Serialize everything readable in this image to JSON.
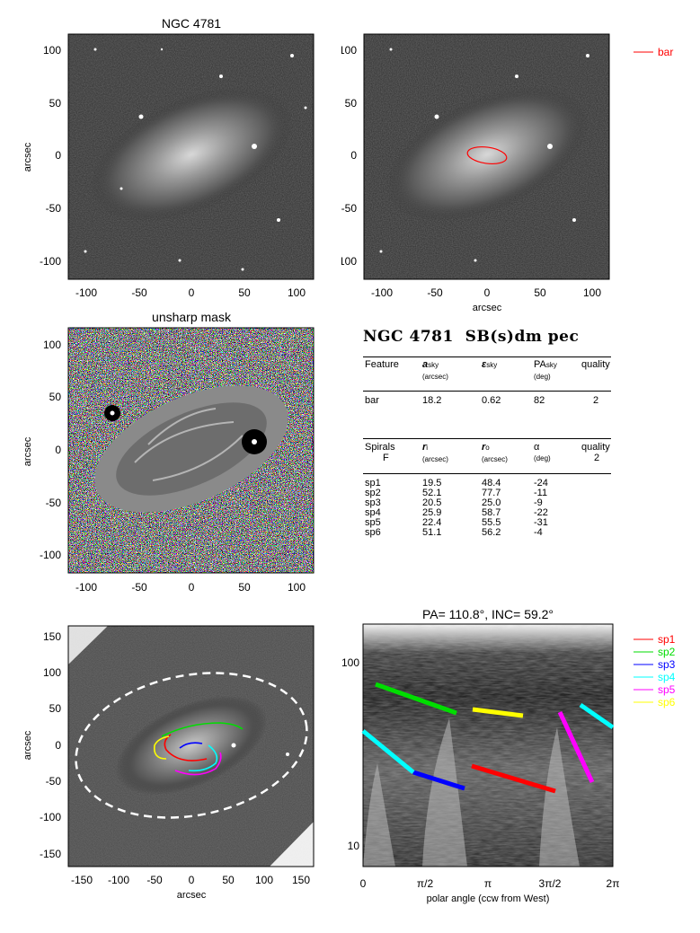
{
  "panel_titles": {
    "top_left": "NGC 4781",
    "middle_left": "unsharp mask",
    "bottom_right": "PA= 110.8°, INC=  59.2°"
  },
  "axis_labels": {
    "arcsec": "arcsec",
    "polar": "polar angle (ccw from West)"
  },
  "ticks": {
    "sky_small": [
      "-100",
      "-50",
      "0",
      "50",
      "100"
    ],
    "sky_large": [
      "-150",
      "-100",
      "-50",
      "0",
      "50",
      "100",
      "150"
    ],
    "log_r": [
      "100",
      "10"
    ],
    "polar": [
      "0",
      "π/2",
      "π",
      "3π/2",
      "2π"
    ]
  },
  "legend_bar": {
    "label": "bar",
    "color": "#ff0000"
  },
  "legend_spirals": [
    {
      "label": "sp1",
      "color": "#ff0000"
    },
    {
      "label": "sp2",
      "color": "#00dd00"
    },
    {
      "label": "sp3",
      "color": "#0000ff"
    },
    {
      "label": "sp4",
      "color": "#00ffff"
    },
    {
      "label": "sp5",
      "color": "#ff00ff"
    },
    {
      "label": "sp6",
      "color": "#ffff00"
    }
  ],
  "table": {
    "galaxy": "NGC 4781",
    "classification": "SB(s)dm pec",
    "bar_header": [
      "Feature",
      "a",
      "sky",
      "(arcsec)",
      "ε",
      "sky",
      "PA",
      "sky",
      "(deg)",
      "quality"
    ],
    "bar_row": [
      "bar",
      "18.2",
      "0.62",
      "82",
      "2"
    ],
    "spiral_header": [
      "Spirals",
      "F",
      "r",
      "i",
      "(arcsec)",
      "r",
      "o",
      "(arcsec)",
      "α",
      "(deg)",
      "quality",
      "2"
    ],
    "spirals": [
      [
        "sp1",
        "19.5",
        "48.4",
        "-24"
      ],
      [
        "sp2",
        "52.1",
        "77.7",
        "-11"
      ],
      [
        "sp3",
        "20.5",
        "25.0",
        "-9"
      ],
      [
        "sp4",
        "25.9",
        "58.7",
        "-22"
      ],
      [
        "sp5",
        "22.4",
        "55.5",
        "-31"
      ],
      [
        "sp6",
        "51.1",
        "56.2",
        "-4"
      ]
    ]
  },
  "colors": {
    "bar_ellipse": "#ff0000",
    "disk_ellipse": "#ffffff",
    "background": "#ffffff"
  }
}
